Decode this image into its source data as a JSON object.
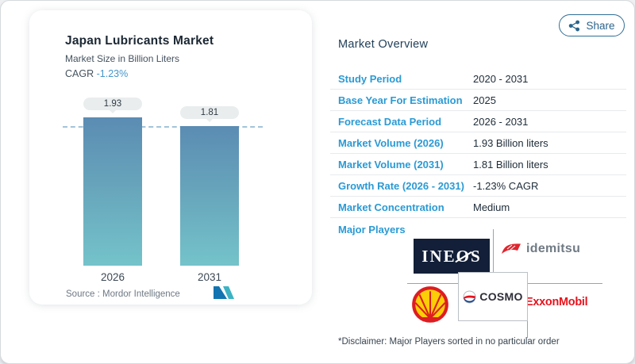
{
  "chart_panel": {
    "title": "Japan Lubricants Market",
    "subtitle": "Market Size in Billion Liters",
    "cagr_label": "CAGR",
    "cagr_value": "-1.23%",
    "source_label": "Source :",
    "source_value": "Mordor Intelligence",
    "logo_icon": "mordor-intelligence-logo"
  },
  "chart_data": {
    "type": "bar",
    "categories": [
      "2026",
      "2031"
    ],
    "values": [
      1.93,
      1.81
    ],
    "value_labels": [
      "1.93",
      "1.81"
    ],
    "title": "Japan Lubricants Market",
    "ylabel": "Market Size in Billion Liters",
    "ylim": [
      0,
      2.0
    ],
    "reference_line": 1.81,
    "grid": false,
    "legend": "none",
    "bar_gradient": [
      "#5b8cb3",
      "#74c3ca"
    ]
  },
  "overview": {
    "heading": "Market Overview",
    "share_label": "Share",
    "share_icon": "share-nodes-icon",
    "rows": [
      {
        "label": "Study Period",
        "value": "2020 - 2031"
      },
      {
        "label": "Base Year For Estimation",
        "value": "2025"
      },
      {
        "label": "Forecast Data Period",
        "value": "2026 - 2031"
      },
      {
        "label": "Market Volume (2026)",
        "value": "1.93 Billion liters"
      },
      {
        "label": "Market Volume (2031)",
        "value": "1.81 Billion liters"
      },
      {
        "label": "Growth Rate (2026 - 2031)",
        "value": "-1.23% CAGR"
      },
      {
        "label": "Market Concentration",
        "value": "Medium"
      }
    ],
    "major_players": {
      "label": "Major Players",
      "ineos": {
        "pre": "INE",
        "o": "O",
        "post": "S"
      },
      "idemitsu_text": "idemitsu",
      "cosmo_text": "COSMO",
      "exxonmobil_text": "ExxonMobil",
      "shell_icon": "shell-pecten-icon",
      "idemitsu_icon": "idemitsu-flame-icon",
      "cosmo_icon": "cosmo-globe-icon"
    },
    "disclaimer": "*Disclaimer: Major Players sorted in no particular order"
  },
  "colors": {
    "accent_blue": "#2a9ad4",
    "cagr_blue": "#4596ca",
    "bar_top": "#5b8cb3",
    "bar_bottom": "#74c3ca",
    "dashed_ref": "#a3c4da",
    "share_border": "#2f6f96",
    "ineos_navy": "#131f38",
    "idemitsu_red": "#e0252e",
    "shell_yellow": "#fbce07",
    "shell_red": "#dd1d21",
    "exxon_red": "#e8121c",
    "cosmo_dark": "#2e2e38",
    "mordor_blue": "#1274b0",
    "mordor_teal": "#3bb3c3"
  }
}
